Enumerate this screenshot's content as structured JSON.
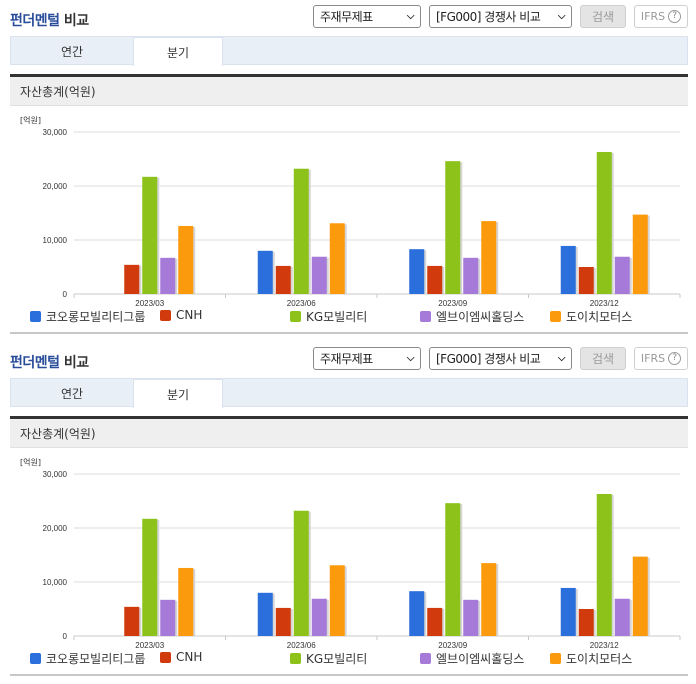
{
  "sections": [
    {
      "title_part1": "펀더멘털",
      "title_part2": " 비교",
      "controls": {
        "statement_select": "주재무제표",
        "compare_select": "[FG000] 경쟁사 비교",
        "search_button": "검색",
        "ifrs_button": "IFRS",
        "help_icon": "?"
      },
      "tabs": [
        {
          "label": "연간",
          "active": false
        },
        {
          "label": "분기",
          "active": true
        }
      ],
      "panel_title": "자산총계(억원)",
      "unit_label": "[억원]"
    },
    {
      "title_part1": "펀더멘털",
      "title_part2": " 비교",
      "controls": {
        "statement_select": "주재무제표",
        "compare_select": "[FG000] 경쟁사 비교",
        "search_button": "검색",
        "ifrs_button": "IFRS",
        "help_icon": "?"
      },
      "tabs": [
        {
          "label": "연간",
          "active": false
        },
        {
          "label": "분기",
          "active": true
        }
      ],
      "panel_title": "자산총계(억원)",
      "unit_label": "[억원]"
    }
  ],
  "chart_data": [
    {
      "type": "bar",
      "title": "자산총계(억원)",
      "xlabel": "",
      "ylabel": "[억원]",
      "ylim": [
        0,
        30000
      ],
      "yticks": [
        0,
        10000,
        20000,
        30000
      ],
      "ytick_labels": [
        "0",
        "10,000",
        "20,000",
        "30,000"
      ],
      "grid": true,
      "legend_position": "bottom",
      "categories": [
        "2023/03",
        "2023/06",
        "2023/09",
        "2023/12"
      ],
      "series": [
        {
          "name": "코오롱모빌리티그룹",
          "color": "#2a6fdb",
          "values": [
            null,
            8000,
            8300,
            8900
          ]
        },
        {
          "name": "CNH",
          "color": "#d03a0c",
          "values": [
            5400,
            5200,
            5200,
            5000
          ]
        },
        {
          "name": "KG모빌리티",
          "color": "#8cc21a",
          "values": [
            21700,
            23200,
            24600,
            26300
          ]
        },
        {
          "name": "엘브이엠씨홀딩스",
          "color": "#a57ad9",
          "values": [
            6700,
            6900,
            6700,
            6900
          ]
        },
        {
          "name": "도이치모터스",
          "color": "#fb9a0c",
          "values": [
            12600,
            13100,
            13500,
            14700
          ]
        }
      ]
    },
    {
      "type": "bar",
      "title": "자산총계(억원)",
      "xlabel": "",
      "ylabel": "[억원]",
      "ylim": [
        0,
        30000
      ],
      "yticks": [
        0,
        10000,
        20000,
        30000
      ],
      "ytick_labels": [
        "0",
        "10,000",
        "20,000",
        "30,000"
      ],
      "grid": true,
      "legend_position": "bottom",
      "categories": [
        "2023/03",
        "2023/06",
        "2023/09",
        "2023/12"
      ],
      "series": [
        {
          "name": "코오롱모빌리티그룹",
          "color": "#2a6fdb",
          "values": [
            null,
            8000,
            8300,
            8900
          ]
        },
        {
          "name": "CNH",
          "color": "#d03a0c",
          "values": [
            5400,
            5200,
            5200,
            5000
          ]
        },
        {
          "name": "KG모빌리티",
          "color": "#8cc21a",
          "values": [
            21700,
            23200,
            24600,
            26300
          ]
        },
        {
          "name": "엘브이엠씨홀딩스",
          "color": "#a57ad9",
          "values": [
            6700,
            6900,
            6700,
            6900
          ]
        },
        {
          "name": "도이치모터스",
          "color": "#fb9a0c",
          "values": [
            12600,
            13100,
            13500,
            14700
          ]
        }
      ]
    }
  ]
}
